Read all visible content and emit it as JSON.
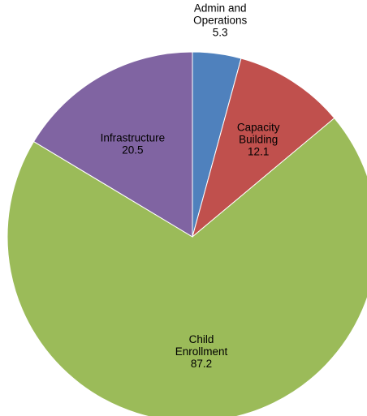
{
  "chart_data": {
    "type": "pie",
    "title": "",
    "start_angle_deg": 0,
    "direction": "clockwise",
    "slices": [
      {
        "lines": [
          "Admin and",
          "Operations",
          "5.3"
        ],
        "value": 5.3,
        "color": "#4f81bd",
        "label_position": "outside"
      },
      {
        "lines": [
          "Capacity",
          "Building",
          "12.1"
        ],
        "value": 12.1,
        "color": "#c0504d",
        "label_position": "inside"
      },
      {
        "lines": [
          "Child",
          "Enrollment",
          "87.2"
        ],
        "value": 87.2,
        "color": "#9bbb59",
        "label_position": "inside"
      },
      {
        "lines": [
          "Infrastructure",
          "20.5"
        ],
        "value": 20.5,
        "color": "#8064a2",
        "label_position": "inside"
      }
    ]
  }
}
